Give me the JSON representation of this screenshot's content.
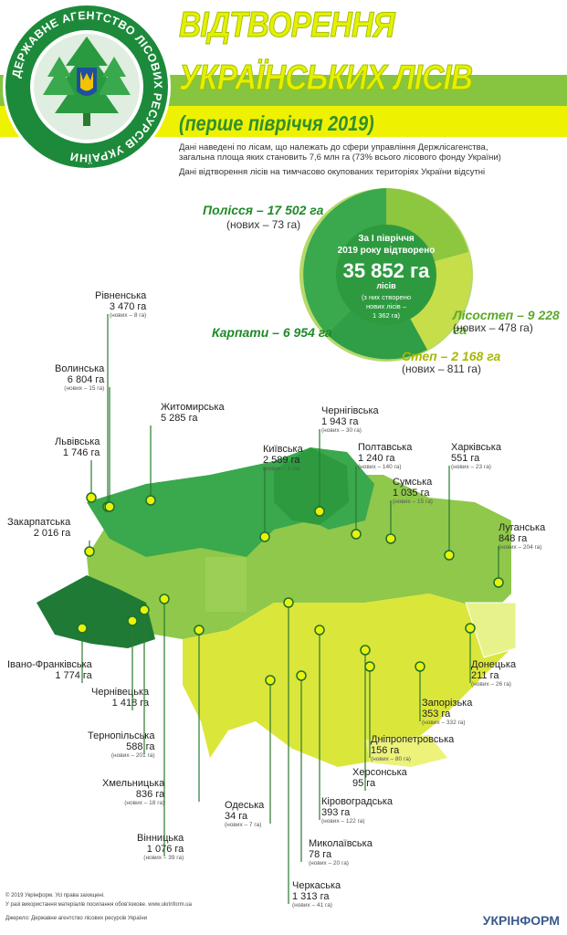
{
  "emblem": {
    "ring_text": "ДЕРЖАВНЕ АГЕНТСТВО ЛІСОВИХ РЕСУРСІВ УКРАЇНИ"
  },
  "header": {
    "title_line1": "ВІДТВОРЕННЯ",
    "title_line2": "УКРАЇНСЬКИХ ЛІСІВ",
    "subtitle": "(перше півріччя 2019)",
    "note1": "Дані наведені по лісам, що належать до сфери управління Держлісагенства,",
    "note2": "загальна площа яких становить 7,6 млн га (73% всього лісового фонду України)",
    "note3": "Дані відтворення лісів на тимчасово окупованих територіях України відсутні"
  },
  "summary": {
    "line1": "За І півріччя",
    "line2": "2019 року відтворено",
    "total": "35 852 га",
    "unit": "лісів",
    "created1": "(з них створено",
    "created2": "нових лісів –",
    "created3": "1 362 га)"
  },
  "zones": {
    "polissia": {
      "name": "Полісся – 17 502 га",
      "new": "(нових – 73 га)"
    },
    "karpaty": {
      "name": "Карпати – 6 954 га"
    },
    "lisostep": {
      "name": "Лісостеп – 9 228 га",
      "new": "(нових – 478 га)"
    },
    "step": {
      "name": "Степ – 2 168 га",
      "new": "(нових – 811 га)"
    }
  },
  "regions": [
    {
      "name": "Рівненська",
      "ha": "3 470 га",
      "new": "(нових – 8 га)"
    },
    {
      "name": "Волинська",
      "ha": "6 804 га",
      "new": "(нових – 15 га)"
    },
    {
      "name": "Житомирська",
      "ha": "5 285 га",
      "new": ""
    },
    {
      "name": "Львівська",
      "ha": "1 746 га",
      "new": ""
    },
    {
      "name": "Чернігівська",
      "ha": "1 943 га",
      "new": "(нових – 30 га)"
    },
    {
      "name": "Київська",
      "ha": "2 589 га",
      "new": "(нових – 1 га)"
    },
    {
      "name": "Полтавська",
      "ha": "1 240 га",
      "new": "(нових – 140 га)"
    },
    {
      "name": "Харківська",
      "ha": "551 га",
      "new": "(нових – 23 га)"
    },
    {
      "name": "Сумська",
      "ha": "1 035 га",
      "new": "(нових – 15 га)"
    },
    {
      "name": "Закарпатська",
      "ha": "2 016 га",
      "new": ""
    },
    {
      "name": "Луганська",
      "ha": "848 га",
      "new": "(нових – 204 га)"
    },
    {
      "name": "Івано-Франківська",
      "ha": "1 774 га",
      "new": ""
    },
    {
      "name": "Чернівецька",
      "ha": "1 418 га",
      "new": ""
    },
    {
      "name": "Донецька",
      "ha": "211 га",
      "new": "(нових – 26 га)"
    },
    {
      "name": "Тернопільська",
      "ha": "588 га",
      "new": "(нових – 201 га)"
    },
    {
      "name": "Запорізька",
      "ha": "353 га",
      "new": "(нових – 332 га)"
    },
    {
      "name": "Дніпропетровська",
      "ha": "156 га",
      "new": "(нових – 80 га)"
    },
    {
      "name": "Херсонська",
      "ha": "95 га",
      "new": ""
    },
    {
      "name": "Хмельницька",
      "ha": "836 га",
      "new": "(нових – 18 га)"
    },
    {
      "name": "Одеська",
      "ha": "34 га",
      "new": "(нових – 7 га)"
    },
    {
      "name": "Кіровоградська",
      "ha": "393 га",
      "new": "(нових – 122 га)"
    },
    {
      "name": "Вінницька",
      "ha": "1 076 га",
      "new": "(нових – 39 га)"
    },
    {
      "name": "Миколаївська",
      "ha": "78 га",
      "new": "(нових – 20 га)"
    },
    {
      "name": "Черкаська",
      "ha": "1 313 га",
      "new": "(нових – 41 га)"
    }
  ],
  "footer": {
    "line1": "© 2019 Укрінформ. Усі права захищені.",
    "line2": "У разі використання матеріалів посилання обов'язкове. www.ukrinform.ua",
    "line3": "Джерело: Державне агентство лісових ресурсів України",
    "brand": "УКРІНФОРМ"
  }
}
